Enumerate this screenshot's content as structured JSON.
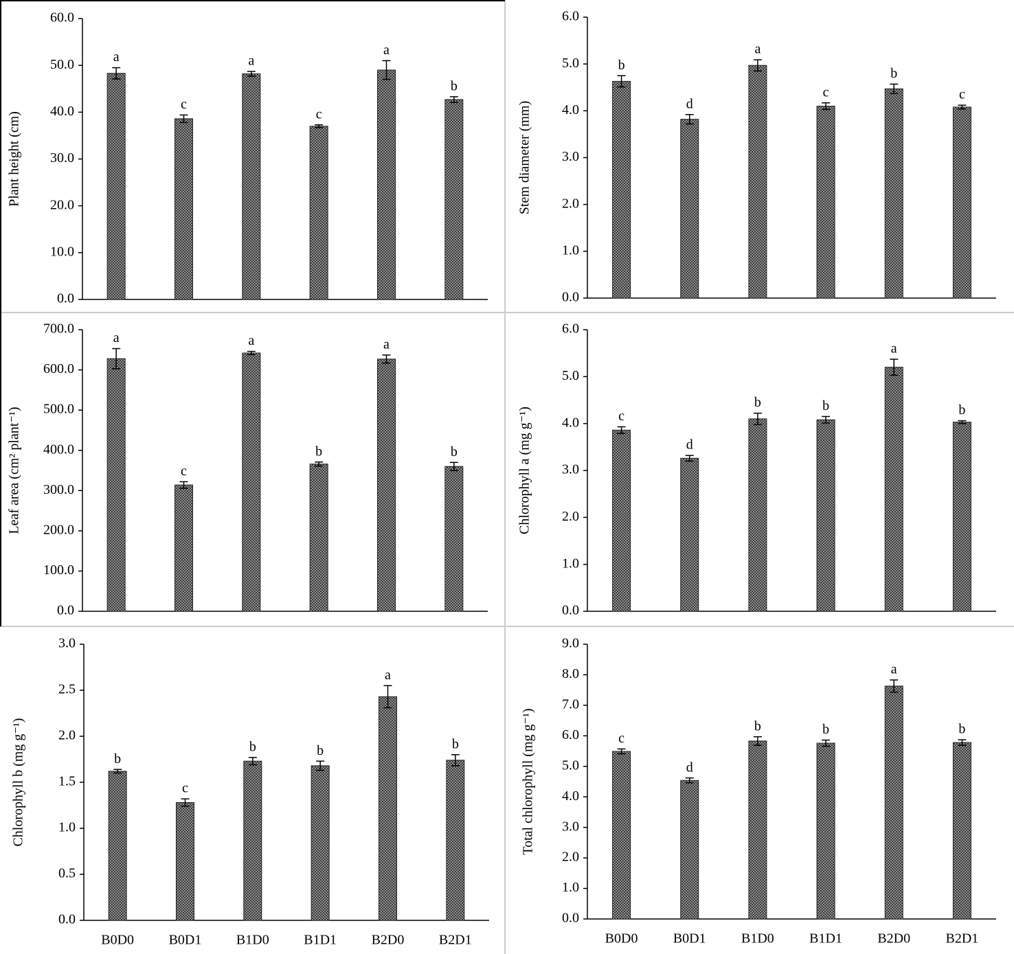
{
  "chart_data": [
    {
      "type": "bar",
      "ylabel": "Plant height (cm)",
      "color": "#3a3a3a",
      "values": [
        48.3,
        38.6,
        48.2,
        37.0,
        49.0,
        42.7
      ],
      "errors": [
        1.2,
        0.8,
        0.5,
        0.3,
        2.0,
        0.6
      ],
      "annotations": [
        "a",
        "c",
        "a",
        "c",
        "a",
        "b"
      ],
      "ylim": [
        0,
        60
      ],
      "yticks": [
        {
          "value": 0,
          "label": "0.0"
        },
        {
          "value": 10,
          "label": "10.0"
        },
        {
          "value": 20,
          "label": "20.0"
        },
        {
          "value": 30,
          "label": "30.0"
        },
        {
          "value": 40,
          "label": "40.0"
        },
        {
          "value": 50,
          "label": "50.0"
        },
        {
          "value": 60,
          "label": "60.0"
        }
      ]
    },
    {
      "type": "bar",
      "ylabel": "Stem diameter (mm)",
      "color": "#3a3a3a",
      "values": [
        4.63,
        3.82,
        4.97,
        4.1,
        4.47,
        4.08
      ],
      "errors": [
        0.12,
        0.1,
        0.12,
        0.07,
        0.1,
        0.04
      ],
      "annotations": [
        "b",
        "d",
        "a",
        "c",
        "b",
        "c"
      ],
      "ylim": [
        0,
        6
      ],
      "yticks": [
        {
          "value": 0,
          "label": "0.0"
        },
        {
          "value": 1,
          "label": "1.0"
        },
        {
          "value": 2,
          "label": "2.0"
        },
        {
          "value": 3,
          "label": "3.0"
        },
        {
          "value": 4,
          "label": "4.0"
        },
        {
          "value": 5,
          "label": "5.0"
        },
        {
          "value": 6,
          "label": "6.0"
        }
      ]
    },
    {
      "type": "bar",
      "ylabel": "Leaf area (cm² plant⁻¹)",
      "color": "#3a3a3a",
      "values": [
        628,
        314,
        642,
        366,
        627,
        360
      ],
      "errors": [
        25,
        8,
        4,
        5,
        10,
        10
      ],
      "annotations": [
        "a",
        "c",
        "a",
        "b",
        "a",
        "b"
      ],
      "ylim": [
        0,
        700
      ],
      "yticks": [
        {
          "value": 0,
          "label": "0.0"
        },
        {
          "value": 100,
          "label": "100.0"
        },
        {
          "value": 200,
          "label": "200.0"
        },
        {
          "value": 300,
          "label": "300.0"
        },
        {
          "value": 400,
          "label": "400.0"
        },
        {
          "value": 500,
          "label": "500.0"
        },
        {
          "value": 600,
          "label": "600.0"
        },
        {
          "value": 700,
          "label": "700.0"
        }
      ]
    },
    {
      "type": "bar",
      "ylabel": "Chlorophyll a (mg g⁻¹)",
      "color": "#3a3a3a",
      "values": [
        3.86,
        3.26,
        4.1,
        4.08,
        5.2,
        4.03
      ],
      "errors": [
        0.07,
        0.06,
        0.12,
        0.07,
        0.17,
        0.03
      ],
      "annotations": [
        "c",
        "d",
        "b",
        "b",
        "a",
        "b"
      ],
      "ylim": [
        0,
        6
      ],
      "yticks": [
        {
          "value": 0,
          "label": "0.0"
        },
        {
          "value": 1,
          "label": "1.0"
        },
        {
          "value": 2,
          "label": "2.0"
        },
        {
          "value": 3,
          "label": "3.0"
        },
        {
          "value": 4,
          "label": "4.0"
        },
        {
          "value": 5,
          "label": "5.0"
        },
        {
          "value": 6,
          "label": "6.0"
        }
      ]
    },
    {
      "type": "bar",
      "ylabel": "Chlorophyll b (mg  g⁻¹)",
      "color": "#3a3a3a",
      "categories": [
        "B0D0",
        "B0D1",
        "B1D0",
        "B1D1",
        "B2D0",
        "B2D1"
      ],
      "values": [
        1.62,
        1.28,
        1.73,
        1.68,
        2.43,
        1.74
      ],
      "errors": [
        0.02,
        0.04,
        0.04,
        0.05,
        0.12,
        0.06
      ],
      "annotations": [
        "b",
        "c",
        "b",
        "b",
        "a",
        "b"
      ],
      "ylim": [
        0,
        3
      ],
      "yticks": [
        {
          "value": 0,
          "label": "0.0"
        },
        {
          "value": 0.5,
          "label": "0.5"
        },
        {
          "value": 1,
          "label": "1.0"
        },
        {
          "value": 1.5,
          "label": "1.5"
        },
        {
          "value": 2,
          "label": "2.0"
        },
        {
          "value": 2.5,
          "label": "2.5"
        },
        {
          "value": 3,
          "label": "3.0"
        }
      ]
    },
    {
      "type": "bar",
      "ylabel": "Total chlorophyll (mg g⁻¹)",
      "color": "#3a3a3a",
      "categories": [
        "B0D0",
        "B0D1",
        "B1D0",
        "B1D1",
        "B2D0",
        "B2D1"
      ],
      "values": [
        5.49,
        4.54,
        5.83,
        5.76,
        7.63,
        5.78
      ],
      "errors": [
        0.08,
        0.08,
        0.14,
        0.1,
        0.2,
        0.09
      ],
      "annotations": [
        "c",
        "d",
        "b",
        "b",
        "a",
        "b"
      ],
      "ylim": [
        0,
        9
      ],
      "yticks": [
        {
          "value": 0,
          "label": "0.0"
        },
        {
          "value": 1,
          "label": "1.0"
        },
        {
          "value": 2,
          "label": "2.0"
        },
        {
          "value": 3,
          "label": "3.0"
        },
        {
          "value": 4,
          "label": "4.0"
        },
        {
          "value": 5,
          "label": "5.0"
        },
        {
          "value": 6,
          "label": "6.0"
        },
        {
          "value": 7,
          "label": "7.0"
        },
        {
          "value": 8,
          "label": "8.0"
        },
        {
          "value": 9,
          "label": "9.0"
        }
      ]
    }
  ]
}
